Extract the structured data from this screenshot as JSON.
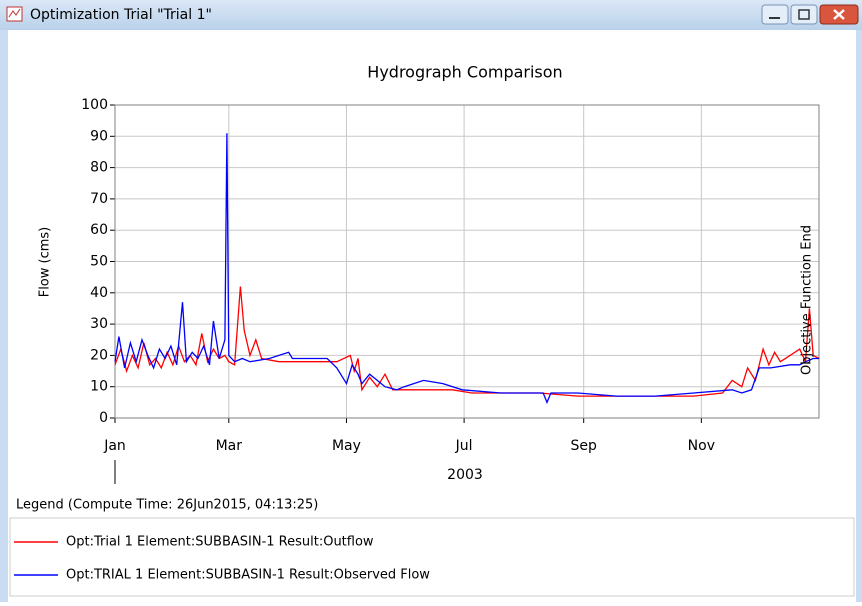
{
  "window": {
    "title": "Optimization Trial \"Trial 1\""
  },
  "chart_data": {
    "type": "line",
    "title": "Hydrograph Comparison",
    "y_label": "Flow (cms)",
    "x_label": "2003",
    "annotation": "Objective Function End",
    "legend_title": "Legend (Compute Time: 26Jun2015, 04:13:25)",
    "xlim": [
      0,
      365
    ],
    "xticks": [
      {
        "value": 0,
        "label": "Jan"
      },
      {
        "value": 59,
        "label": "Mar"
      },
      {
        "value": 120,
        "label": "May"
      },
      {
        "value": 181,
        "label": "Jul"
      },
      {
        "value": 243,
        "label": "Sep"
      },
      {
        "value": 304,
        "label": "Nov"
      }
    ],
    "ylim": [
      0,
      100
    ],
    "yticks": [
      0,
      10,
      20,
      30,
      40,
      50,
      60,
      70,
      80,
      90,
      100
    ],
    "grid": true,
    "series": [
      {
        "name": "Opt:Trial 1 Element:SUBBASIN-1 Result:Outflow",
        "color": "#ff0000",
        "x": [
          0,
          3,
          6,
          9,
          12,
          15,
          18,
          21,
          24,
          27,
          30,
          33,
          36,
          39,
          42,
          45,
          48,
          51,
          54,
          57,
          59,
          62,
          65,
          67,
          70,
          73,
          76,
          85,
          100,
          115,
          122,
          124,
          126,
          128,
          132,
          136,
          140,
          144,
          160,
          175,
          185,
          200,
          220,
          240,
          260,
          280,
          300,
          315,
          320,
          325,
          328,
          332,
          336,
          339,
          342,
          345,
          350,
          355,
          358,
          360,
          362,
          365
        ],
        "values": [
          17,
          22,
          15,
          20,
          16,
          24,
          17,
          19,
          16,
          21,
          17,
          23,
          18,
          20,
          17,
          27,
          18,
          22,
          19,
          20,
          18,
          17,
          42,
          28,
          20,
          25,
          19,
          18,
          18,
          18,
          20,
          15,
          19,
          9,
          13,
          10,
          14,
          9,
          9,
          9,
          8,
          8,
          8,
          7,
          7,
          7,
          7,
          8,
          12,
          10,
          16,
          12,
          22,
          17,
          21,
          18,
          20,
          22,
          18,
          35,
          20,
          19
        ]
      },
      {
        "name": "Opt:TRIAL 1 Element:SUBBASIN-1 Result:Observed Flow",
        "color": "#0000ff",
        "x": [
          0,
          2,
          5,
          8,
          11,
          14,
          17,
          20,
          23,
          26,
          29,
          32,
          35,
          37,
          40,
          43,
          46,
          49,
          51,
          54,
          57,
          58,
          59,
          62,
          66,
          70,
          80,
          90,
          92,
          100,
          110,
          115,
          118,
          120,
          123,
          126,
          128,
          132,
          136,
          140,
          146,
          150,
          160,
          170,
          180,
          200,
          215,
          222,
          224,
          226,
          240,
          260,
          280,
          300,
          320,
          325,
          330,
          334,
          340,
          350,
          355,
          358,
          362,
          365
        ],
        "values": [
          18,
          26,
          16,
          24,
          18,
          25,
          20,
          16,
          22,
          19,
          23,
          17,
          37,
          18,
          21,
          19,
          23,
          17,
          31,
          19,
          25,
          91,
          20,
          18,
          19,
          18,
          19,
          21,
          19,
          19,
          19,
          16,
          13,
          11,
          17,
          14,
          11,
          14,
          12,
          10,
          9,
          10,
          12,
          11,
          9,
          8,
          8,
          8,
          5,
          8,
          8,
          7,
          7,
          8,
          9,
          8,
          9,
          16,
          16,
          17,
          17,
          18,
          19,
          19
        ]
      }
    ]
  }
}
